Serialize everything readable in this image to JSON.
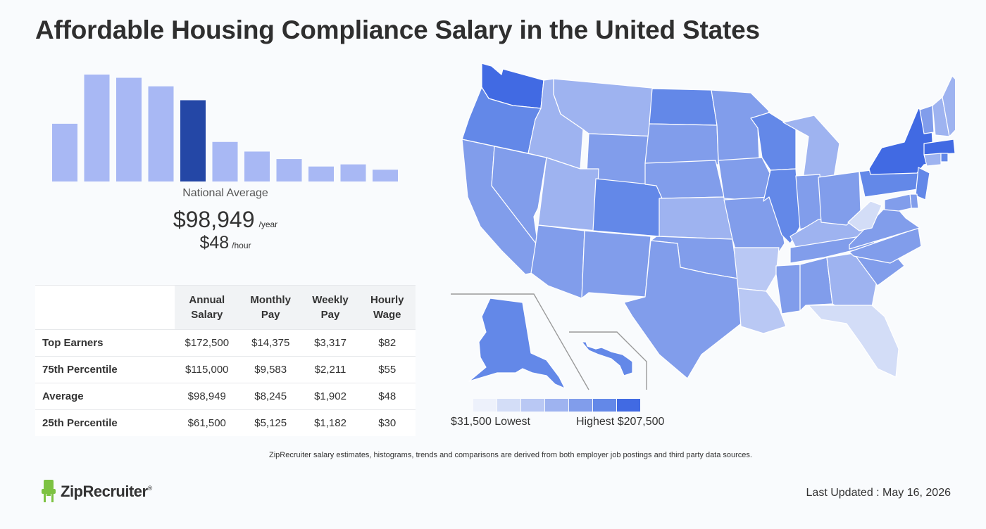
{
  "page": {
    "title": "Affordable Housing Compliance Salary in the United States",
    "national_average_label": "National Average",
    "year_amount": "$98,949",
    "year_unit": "/year",
    "hour_amount": "$48",
    "hour_unit": "/hour",
    "footnote": "ZipRecruiter salary estimates, histograms, trends and comparisons are derived from both employer job postings and third party data sources.",
    "logo_text": "ZipRecruiter",
    "logo_mark": "®",
    "last_updated": "Last Updated : May 16, 2026"
  },
  "table": {
    "headers": [
      "Annual Salary",
      "Monthly Pay",
      "Weekly Pay",
      "Hourly Wage"
    ],
    "rows": [
      {
        "label": "Top Earners",
        "values": [
          "$172,500",
          "$14,375",
          "$3,317",
          "$82"
        ]
      },
      {
        "label": "75th Percentile",
        "values": [
          "$115,000",
          "$9,583",
          "$2,211",
          "$55"
        ]
      },
      {
        "label": "Average",
        "values": [
          "$98,949",
          "$8,245",
          "$1,902",
          "$48"
        ]
      },
      {
        "label": "25th Percentile",
        "values": [
          "$61,500",
          "$5,125",
          "$1,182",
          "$30"
        ]
      }
    ]
  },
  "legend": {
    "low_label": "$31,500 Lowest",
    "high_label": "Highest $207,500",
    "colors": [
      "#edf1fb",
      "#d3ddf7",
      "#b9c8f4",
      "#9eb3f0",
      "#819deb",
      "#6388e8",
      "#416ae3"
    ]
  },
  "chart_data": {
    "type": "bar",
    "title": "",
    "xlabel": "",
    "ylabel": "",
    "ylim": [
      0,
      1
    ],
    "relative_values": [
      0.54,
      1.0,
      0.97,
      0.89,
      0.76,
      0.37,
      0.28,
      0.21,
      0.14,
      0.16,
      0.11
    ],
    "highlight_index": 4,
    "colors": {
      "bar": "#a8b8f4",
      "highlight": "#2447a6"
    }
  },
  "map": {
    "state_shading_levels": {
      "WA": 7,
      "OR": 6,
      "CA": 5,
      "NV": 5,
      "ID": 4,
      "MT": 4,
      "WY": 5,
      "UT": 4,
      "AZ": 5,
      "CO": 6,
      "NM": 5,
      "ND": 6,
      "SD": 5,
      "NE": 5,
      "KS": 4,
      "OK": 5,
      "TX": 5,
      "MN": 5,
      "IA": 5,
      "MO": 5,
      "AR": 3,
      "LA": 3,
      "WI": 6,
      "IL": 6,
      "MS": 5,
      "MI": 4,
      "IN": 5,
      "KY": 4,
      "TN": 5,
      "AL": 5,
      "OH": 5,
      "GA": 4,
      "FL": 2,
      "SC": 5,
      "NC": 5,
      "VA": 5,
      "WV": 2,
      "PA": 6,
      "NY": 7,
      "NJ": 6,
      "DE": 5,
      "MD": 5,
      "VT": 5,
      "NH": 4,
      "ME": 4,
      "MA": 7,
      "CT": 4,
      "RI": 6,
      "AK": 6,
      "HI": 6
    }
  }
}
